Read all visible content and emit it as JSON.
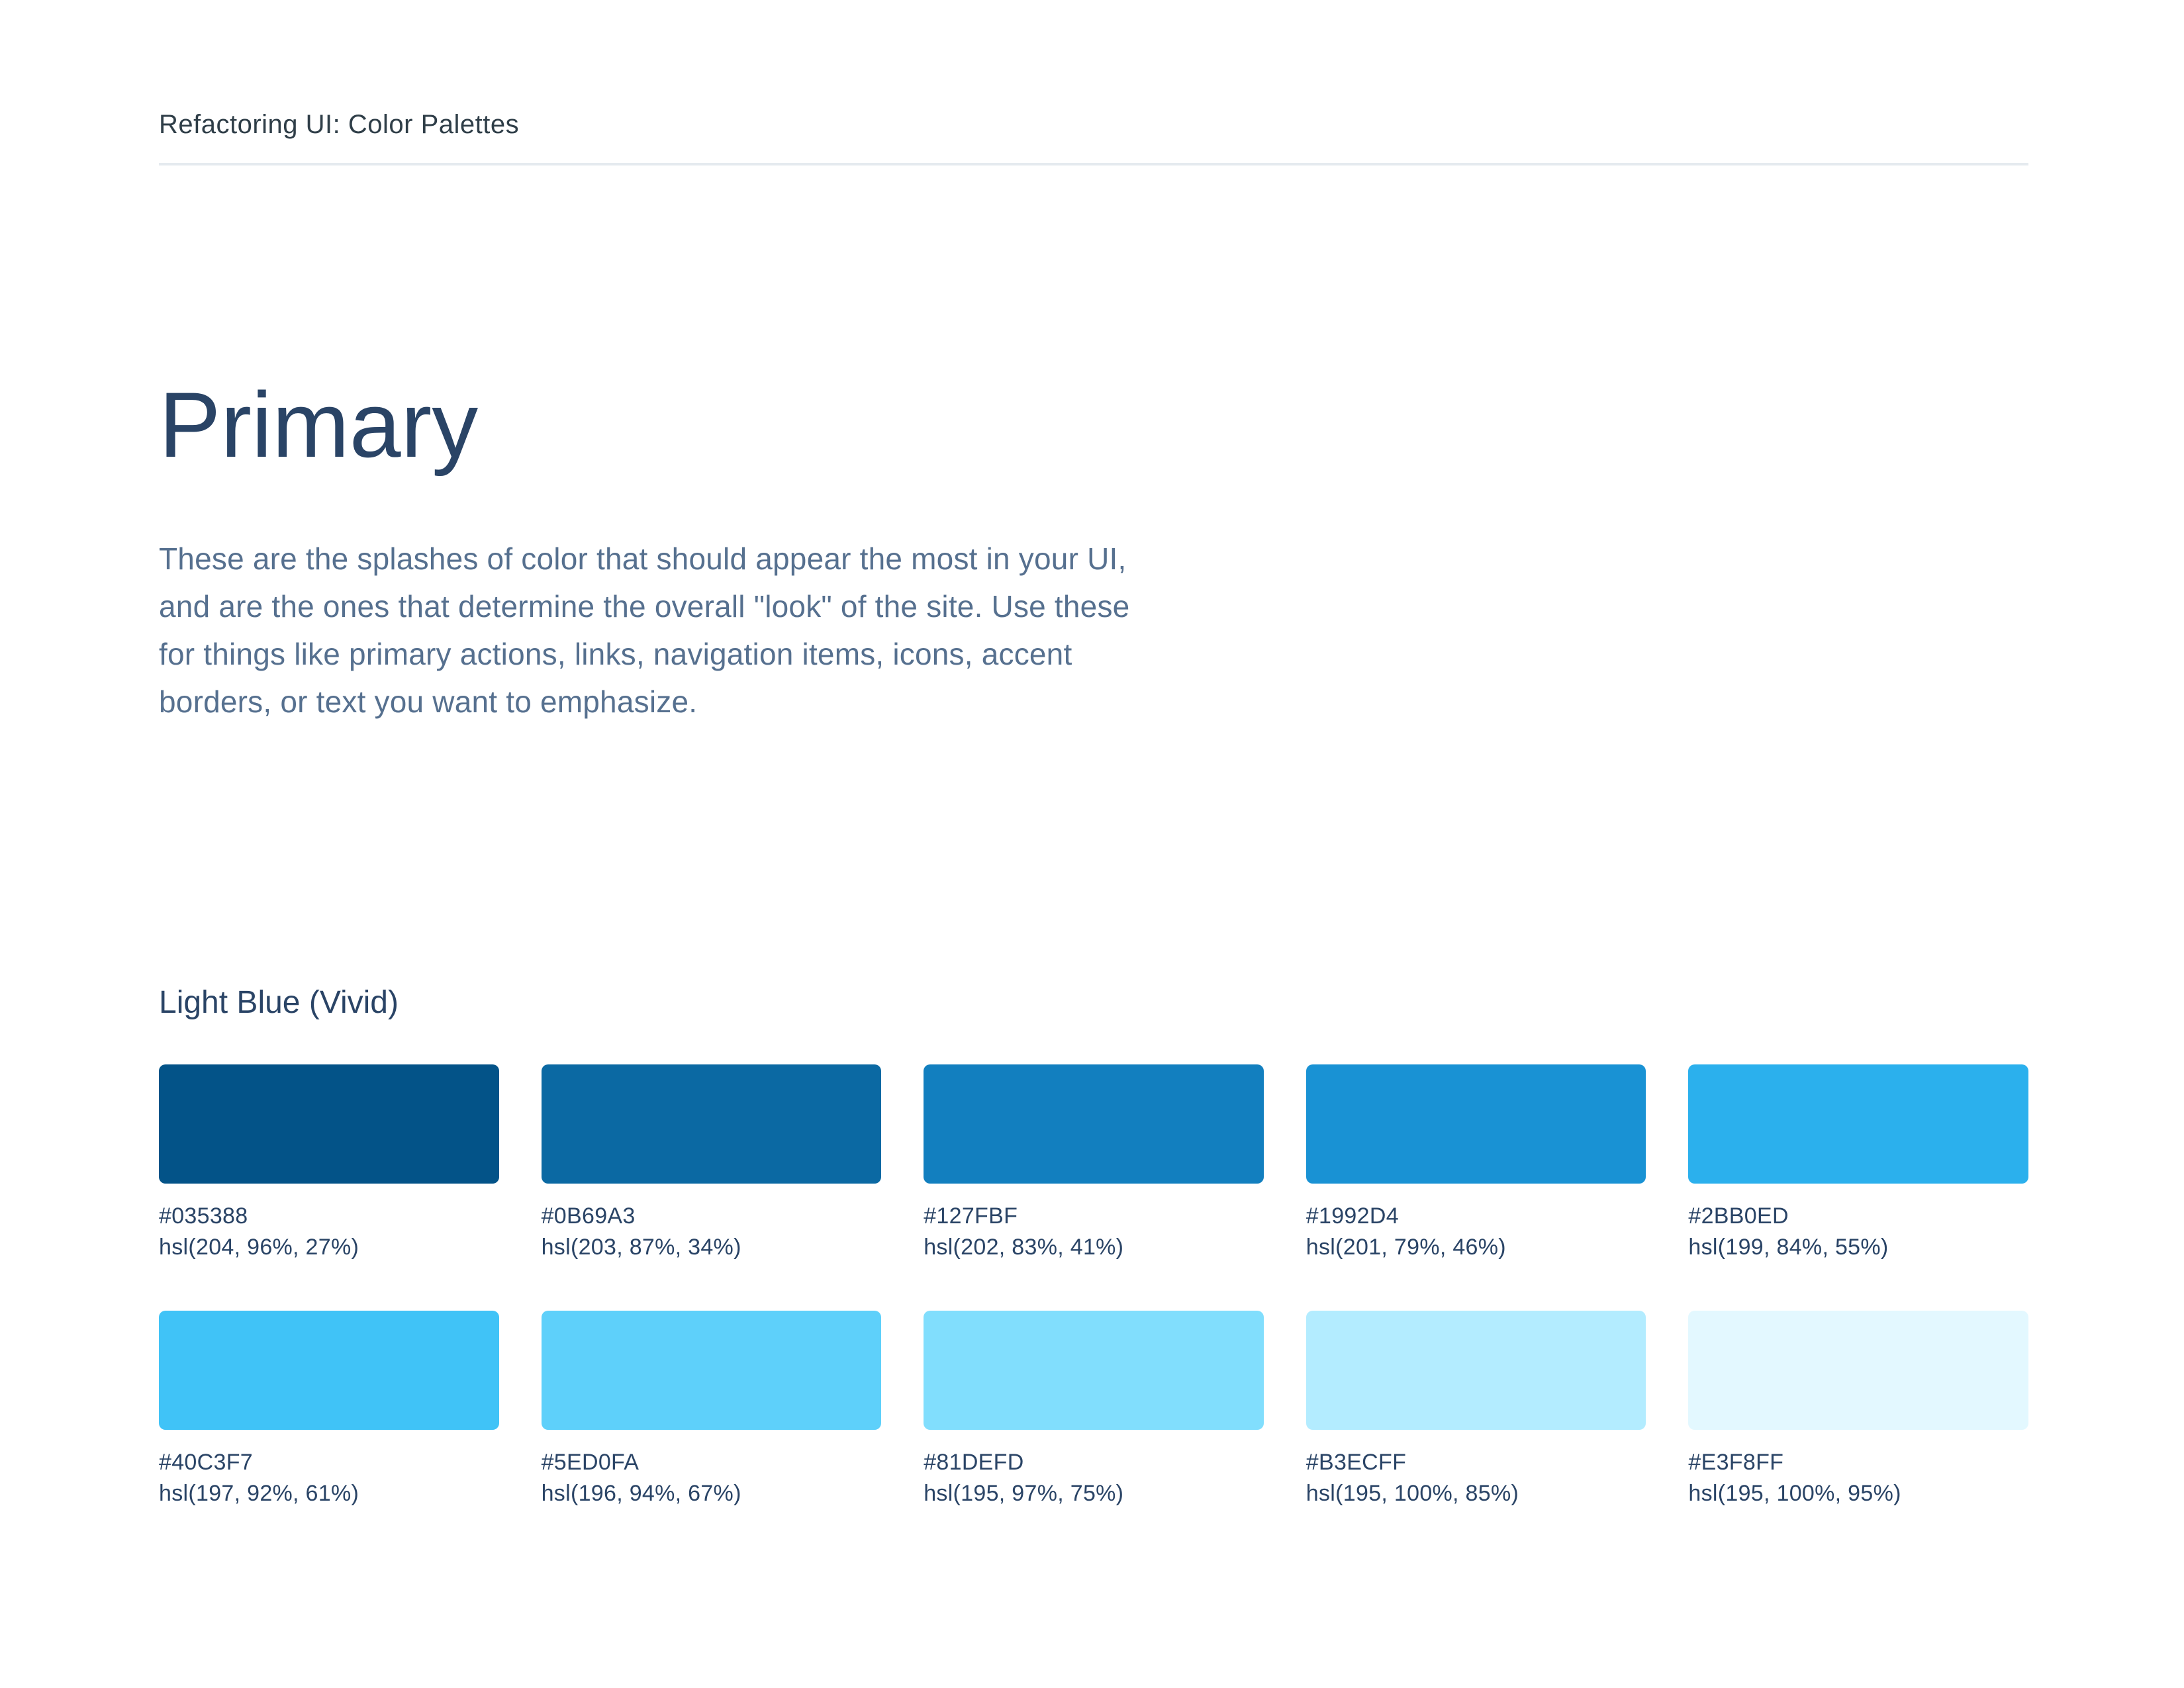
{
  "header": {
    "title": "Refactoring UI: Color Palettes"
  },
  "section": {
    "title": "Primary",
    "description_lines": [
      "These are the splashes of color that should appear the most in your UI,",
      "and are the ones that determine the overall \"look\" of the site. Use these",
      "for things like primary actions, links, navigation items, icons, accent",
      "borders, or text you want to emphasize."
    ]
  },
  "palette": {
    "group_title": "Light Blue (Vivid)",
    "swatches": [
      {
        "hex": "#035388",
        "hsl": "hsl(204, 96%, 27%)"
      },
      {
        "hex": "#0B69A3",
        "hsl": "hsl(203, 87%, 34%)"
      },
      {
        "hex": "#127FBF",
        "hsl": "hsl(202, 83%, 41%)"
      },
      {
        "hex": "#1992D4",
        "hsl": "hsl(201, 79%, 46%)"
      },
      {
        "hex": "#2BB0ED",
        "hsl": "hsl(199, 84%, 55%)"
      },
      {
        "hex": "#40C3F7",
        "hsl": "hsl(197, 92%, 61%)"
      },
      {
        "hex": "#5ED0FA",
        "hsl": "hsl(196, 94%, 67%)"
      },
      {
        "hex": "#81DEFD",
        "hsl": "hsl(195, 97%, 75%)"
      },
      {
        "hex": "#B3ECFF",
        "hsl": "hsl(195, 100%, 85%)"
      },
      {
        "hex": "#E3F8FF",
        "hsl": "hsl(195, 100%, 95%)"
      }
    ]
  },
  "theme": {
    "page_background": "#FFFFFF",
    "header_text_color": "#2F3E48",
    "divider_color": "#E5EAEF",
    "heading_text_color": "#2A4466",
    "body_text_color": "#56708F",
    "label_text_color": "#2A4466"
  }
}
